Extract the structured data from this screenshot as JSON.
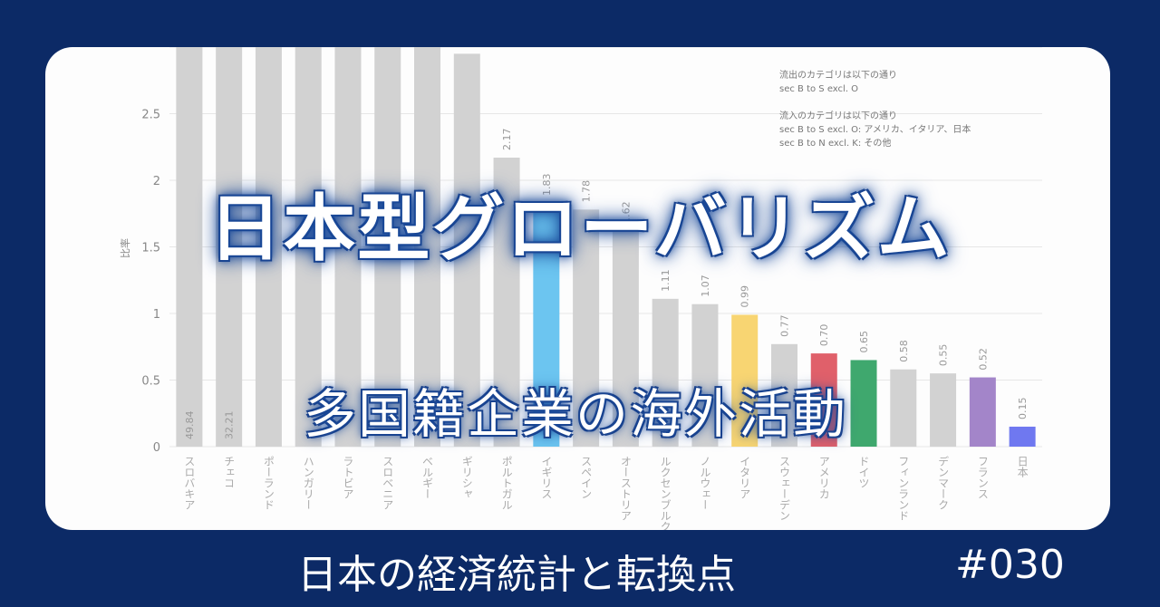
{
  "title": "日本型グローバリズム",
  "subtitle": "多国籍企業の海外活動",
  "footer": {
    "series": "日本の経済統計と転換点",
    "number": "#030"
  },
  "notes": [
    "流出のカテゴリは以下の通り",
    "sec B to S excl. O",
    "流入のカテゴリは以下の通り",
    "sec B to S excl. O: アメリカ、イタリア、日本",
    "sec B to N excl. K: その他"
  ],
  "chart_data": {
    "type": "bar",
    "ylabel": "比率",
    "ylim": [
      0,
      3
    ],
    "yticks": [
      0,
      0.5,
      1,
      1.5,
      2,
      2.5,
      3
    ],
    "ytick_labels": [
      "0",
      "0.5",
      "1",
      "1.5",
      "2",
      "2.5",
      ""
    ],
    "grid": true,
    "categories": [
      "スロバキア",
      "チェコ",
      "ポーランド",
      "ハンガリー",
      "ラトビア",
      "スロベニア",
      "ベルギー",
      "ギリシャ",
      "ポルトガル",
      "イギリス",
      "スペイン",
      "オーストリア",
      "ルクセンブルク",
      "ノルウェー",
      "イタリア",
      "スウェーデン",
      "アメリカ",
      "ドイツ",
      "フィンランド",
      "デンマーク",
      "フランス",
      "日本"
    ],
    "values": [
      49.84,
      32.21,
      3.2,
      3.2,
      3.2,
      3.2,
      3.2,
      2.95,
      2.17,
      1.83,
      1.78,
      1.62,
      1.11,
      1.07,
      0.99,
      0.77,
      0.7,
      0.65,
      0.58,
      0.55,
      0.52,
      0.15
    ],
    "value_labels": [
      "49.84",
      "32.21",
      "",
      "",
      "",
      "",
      "",
      "",
      "2.17",
      "1.83",
      "1.78",
      "1.62",
      "1.11",
      "1.07",
      "0.99",
      "0.77",
      "0.70",
      "0.65",
      "0.58",
      "0.55",
      "0.52",
      "0.15"
    ],
    "colors": [
      "#d2d2d2",
      "#d2d2d2",
      "#d2d2d2",
      "#d2d2d2",
      "#d2d2d2",
      "#d2d2d2",
      "#d2d2d2",
      "#d2d2d2",
      "#d2d2d2",
      "#6cc5f0",
      "#d2d2d2",
      "#d2d2d2",
      "#d2d2d2",
      "#d2d2d2",
      "#f8d572",
      "#d2d2d2",
      "#e0606a",
      "#3fa86e",
      "#d2d2d2",
      "#d2d2d2",
      "#a385c9",
      "#6f78f0"
    ]
  }
}
